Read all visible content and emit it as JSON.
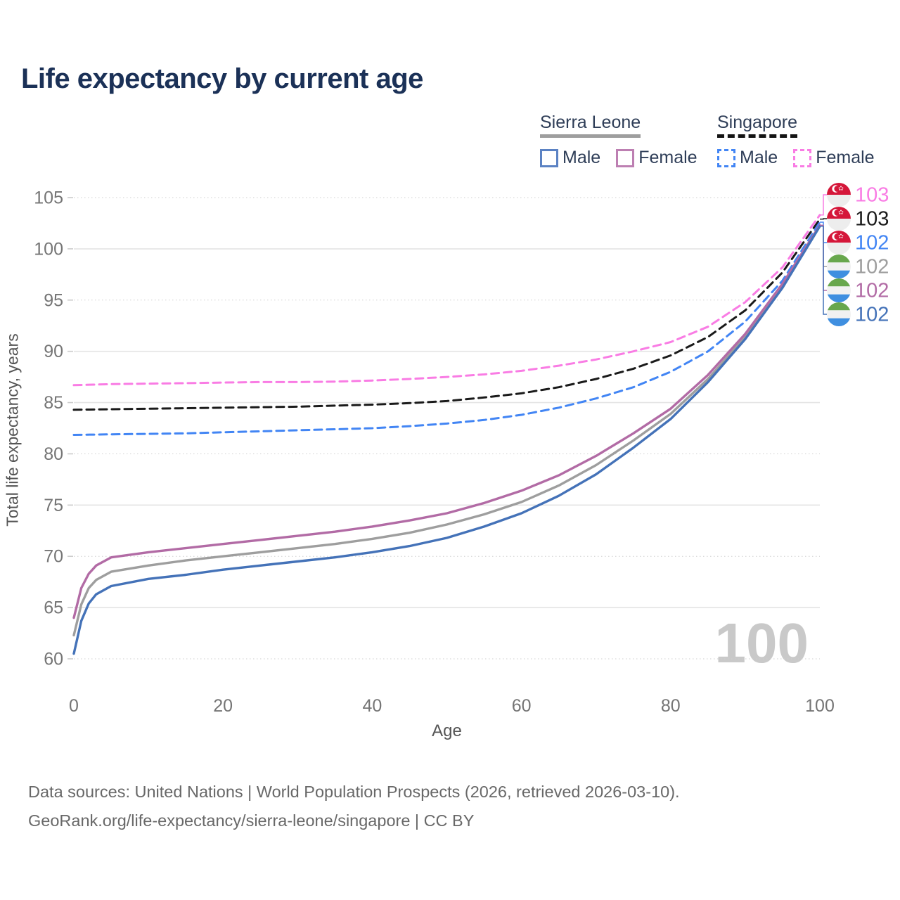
{
  "title": "Life expectancy by current age",
  "watermark": "100",
  "legend": {
    "groups": [
      {
        "name": "Sierra Leone",
        "line_style": "solid",
        "underline_color": "#9e9e9e",
        "items": [
          {
            "label": "Male",
            "color": "#4472b8",
            "dashed": false
          },
          {
            "label": "Female",
            "color": "#b26ba5",
            "dashed": false
          }
        ]
      },
      {
        "name": "Singapore",
        "line_style": "dashed",
        "underline_color": "#141414",
        "items": [
          {
            "label": "Male",
            "color": "#4285f4",
            "dashed": true
          },
          {
            "label": "Female",
            "color": "#f97ce4",
            "dashed": true
          }
        ]
      }
    ]
  },
  "flags": {
    "singapore": {
      "top": "#d5173a",
      "bottom": "#ededed"
    },
    "sierra-leone": {
      "green": "#68a74d",
      "white": "#f1f1f1",
      "blue": "#3f8fe0"
    }
  },
  "footer": {
    "line1": "Data sources: United Nations | World Population Prospects (2026, retrieved 2026-03-10).",
    "line2": "GeoRank.org/life-expectancy/sierra-leone/singapore | CC BY"
  },
  "chart_data": {
    "type": "line",
    "title": "Life expectancy by current age",
    "xlabel": "Age",
    "ylabel": "Total life expectancy, years",
    "xlim": [
      0,
      100
    ],
    "ylim": [
      60,
      105
    ],
    "xticks": [
      0,
      20,
      40,
      60,
      80,
      100
    ],
    "yticks": [
      60,
      65,
      70,
      75,
      80,
      85,
      90,
      95,
      100,
      105
    ],
    "grid": "horizontal-only",
    "legend_position": "top-right",
    "series": [
      {
        "id": "singapore-female",
        "country": "Singapore",
        "sex": "Female",
        "color": "#f97ce4",
        "dashed": true,
        "flag": "singapore",
        "end_value": "103",
        "label_row": 0,
        "x": [
          0,
          5,
          10,
          15,
          20,
          25,
          30,
          35,
          40,
          45,
          50,
          55,
          60,
          65,
          70,
          75,
          80,
          85,
          90,
          95,
          100
        ],
        "y": [
          86.7,
          86.8,
          86.85,
          86.9,
          86.95,
          87.0,
          87.0,
          87.05,
          87.15,
          87.3,
          87.5,
          87.75,
          88.1,
          88.6,
          89.2,
          90.0,
          90.9,
          92.4,
          94.8,
          98.2,
          103.3
        ]
      },
      {
        "id": "singapore-total",
        "country": "Singapore",
        "sex": "Both",
        "color": "#1a1a1a",
        "dashed": true,
        "flag": "singapore",
        "end_value": "103",
        "label_row": 1,
        "x": [
          0,
          5,
          10,
          15,
          20,
          25,
          30,
          35,
          40,
          45,
          50,
          55,
          60,
          65,
          70,
          75,
          80,
          85,
          90,
          95,
          100
        ],
        "y": [
          84.3,
          84.35,
          84.4,
          84.45,
          84.5,
          84.55,
          84.6,
          84.7,
          84.8,
          84.95,
          85.15,
          85.5,
          85.9,
          86.5,
          87.3,
          88.3,
          89.6,
          91.4,
          94.0,
          97.7,
          102.9
        ]
      },
      {
        "id": "singapore-male",
        "country": "Singapore",
        "sex": "Male",
        "color": "#4285f4",
        "dashed": true,
        "flag": "singapore",
        "end_value": "102",
        "label_row": 2,
        "x": [
          0,
          5,
          10,
          15,
          20,
          25,
          30,
          35,
          40,
          45,
          50,
          55,
          60,
          65,
          70,
          75,
          80,
          85,
          90,
          95,
          100
        ],
        "y": [
          81.85,
          81.9,
          81.95,
          82.0,
          82.1,
          82.2,
          82.3,
          82.4,
          82.5,
          82.7,
          82.95,
          83.3,
          83.8,
          84.5,
          85.4,
          86.5,
          88.0,
          90.0,
          92.9,
          96.9,
          102.6
        ]
      },
      {
        "id": "sierra-leone-total",
        "country": "Sierra Leone",
        "sex": "Both",
        "color": "#9e9e9e",
        "dashed": false,
        "flag": "sierra-leone",
        "end_value": "102",
        "label_row": 3,
        "x": [
          0,
          1,
          2,
          3,
          5,
          10,
          15,
          20,
          25,
          30,
          35,
          40,
          45,
          50,
          55,
          60,
          65,
          70,
          75,
          80,
          85,
          90,
          95,
          100
        ],
        "y": [
          62.3,
          65.3,
          66.9,
          67.7,
          68.5,
          69.1,
          69.6,
          70.0,
          70.4,
          70.8,
          71.2,
          71.7,
          72.3,
          73.1,
          74.1,
          75.3,
          76.9,
          78.9,
          81.3,
          83.9,
          87.3,
          91.4,
          96.4,
          102.25
        ]
      },
      {
        "id": "sierra-leone-female",
        "country": "Sierra Leone",
        "sex": "Female",
        "color": "#b26ba5",
        "dashed": false,
        "flag": "sierra-leone",
        "end_value": "102",
        "label_row": 4,
        "x": [
          0,
          1,
          2,
          3,
          5,
          10,
          15,
          20,
          25,
          30,
          35,
          40,
          45,
          50,
          55,
          60,
          65,
          70,
          75,
          80,
          85,
          90,
          95,
          100
        ],
        "y": [
          64.0,
          66.9,
          68.3,
          69.1,
          69.9,
          70.4,
          70.8,
          71.2,
          71.6,
          72.0,
          72.4,
          72.9,
          73.5,
          74.2,
          75.2,
          76.4,
          77.9,
          79.8,
          82.0,
          84.4,
          87.7,
          91.7,
          96.6,
          102.3
        ]
      },
      {
        "id": "sierra-leone-male",
        "country": "Sierra Leone",
        "sex": "Male",
        "color": "#4472b8",
        "dashed": false,
        "flag": "sierra-leone",
        "end_value": "102",
        "label_row": 5,
        "x": [
          0,
          1,
          2,
          3,
          5,
          10,
          15,
          20,
          25,
          30,
          35,
          40,
          45,
          50,
          55,
          60,
          65,
          70,
          75,
          80,
          85,
          90,
          95,
          100
        ],
        "y": [
          60.5,
          63.7,
          65.4,
          66.3,
          67.1,
          67.8,
          68.2,
          68.7,
          69.1,
          69.5,
          69.9,
          70.4,
          71.0,
          71.8,
          72.9,
          74.2,
          75.9,
          78.0,
          80.6,
          83.4,
          87.0,
          91.2,
          96.2,
          102.2
        ]
      }
    ]
  }
}
